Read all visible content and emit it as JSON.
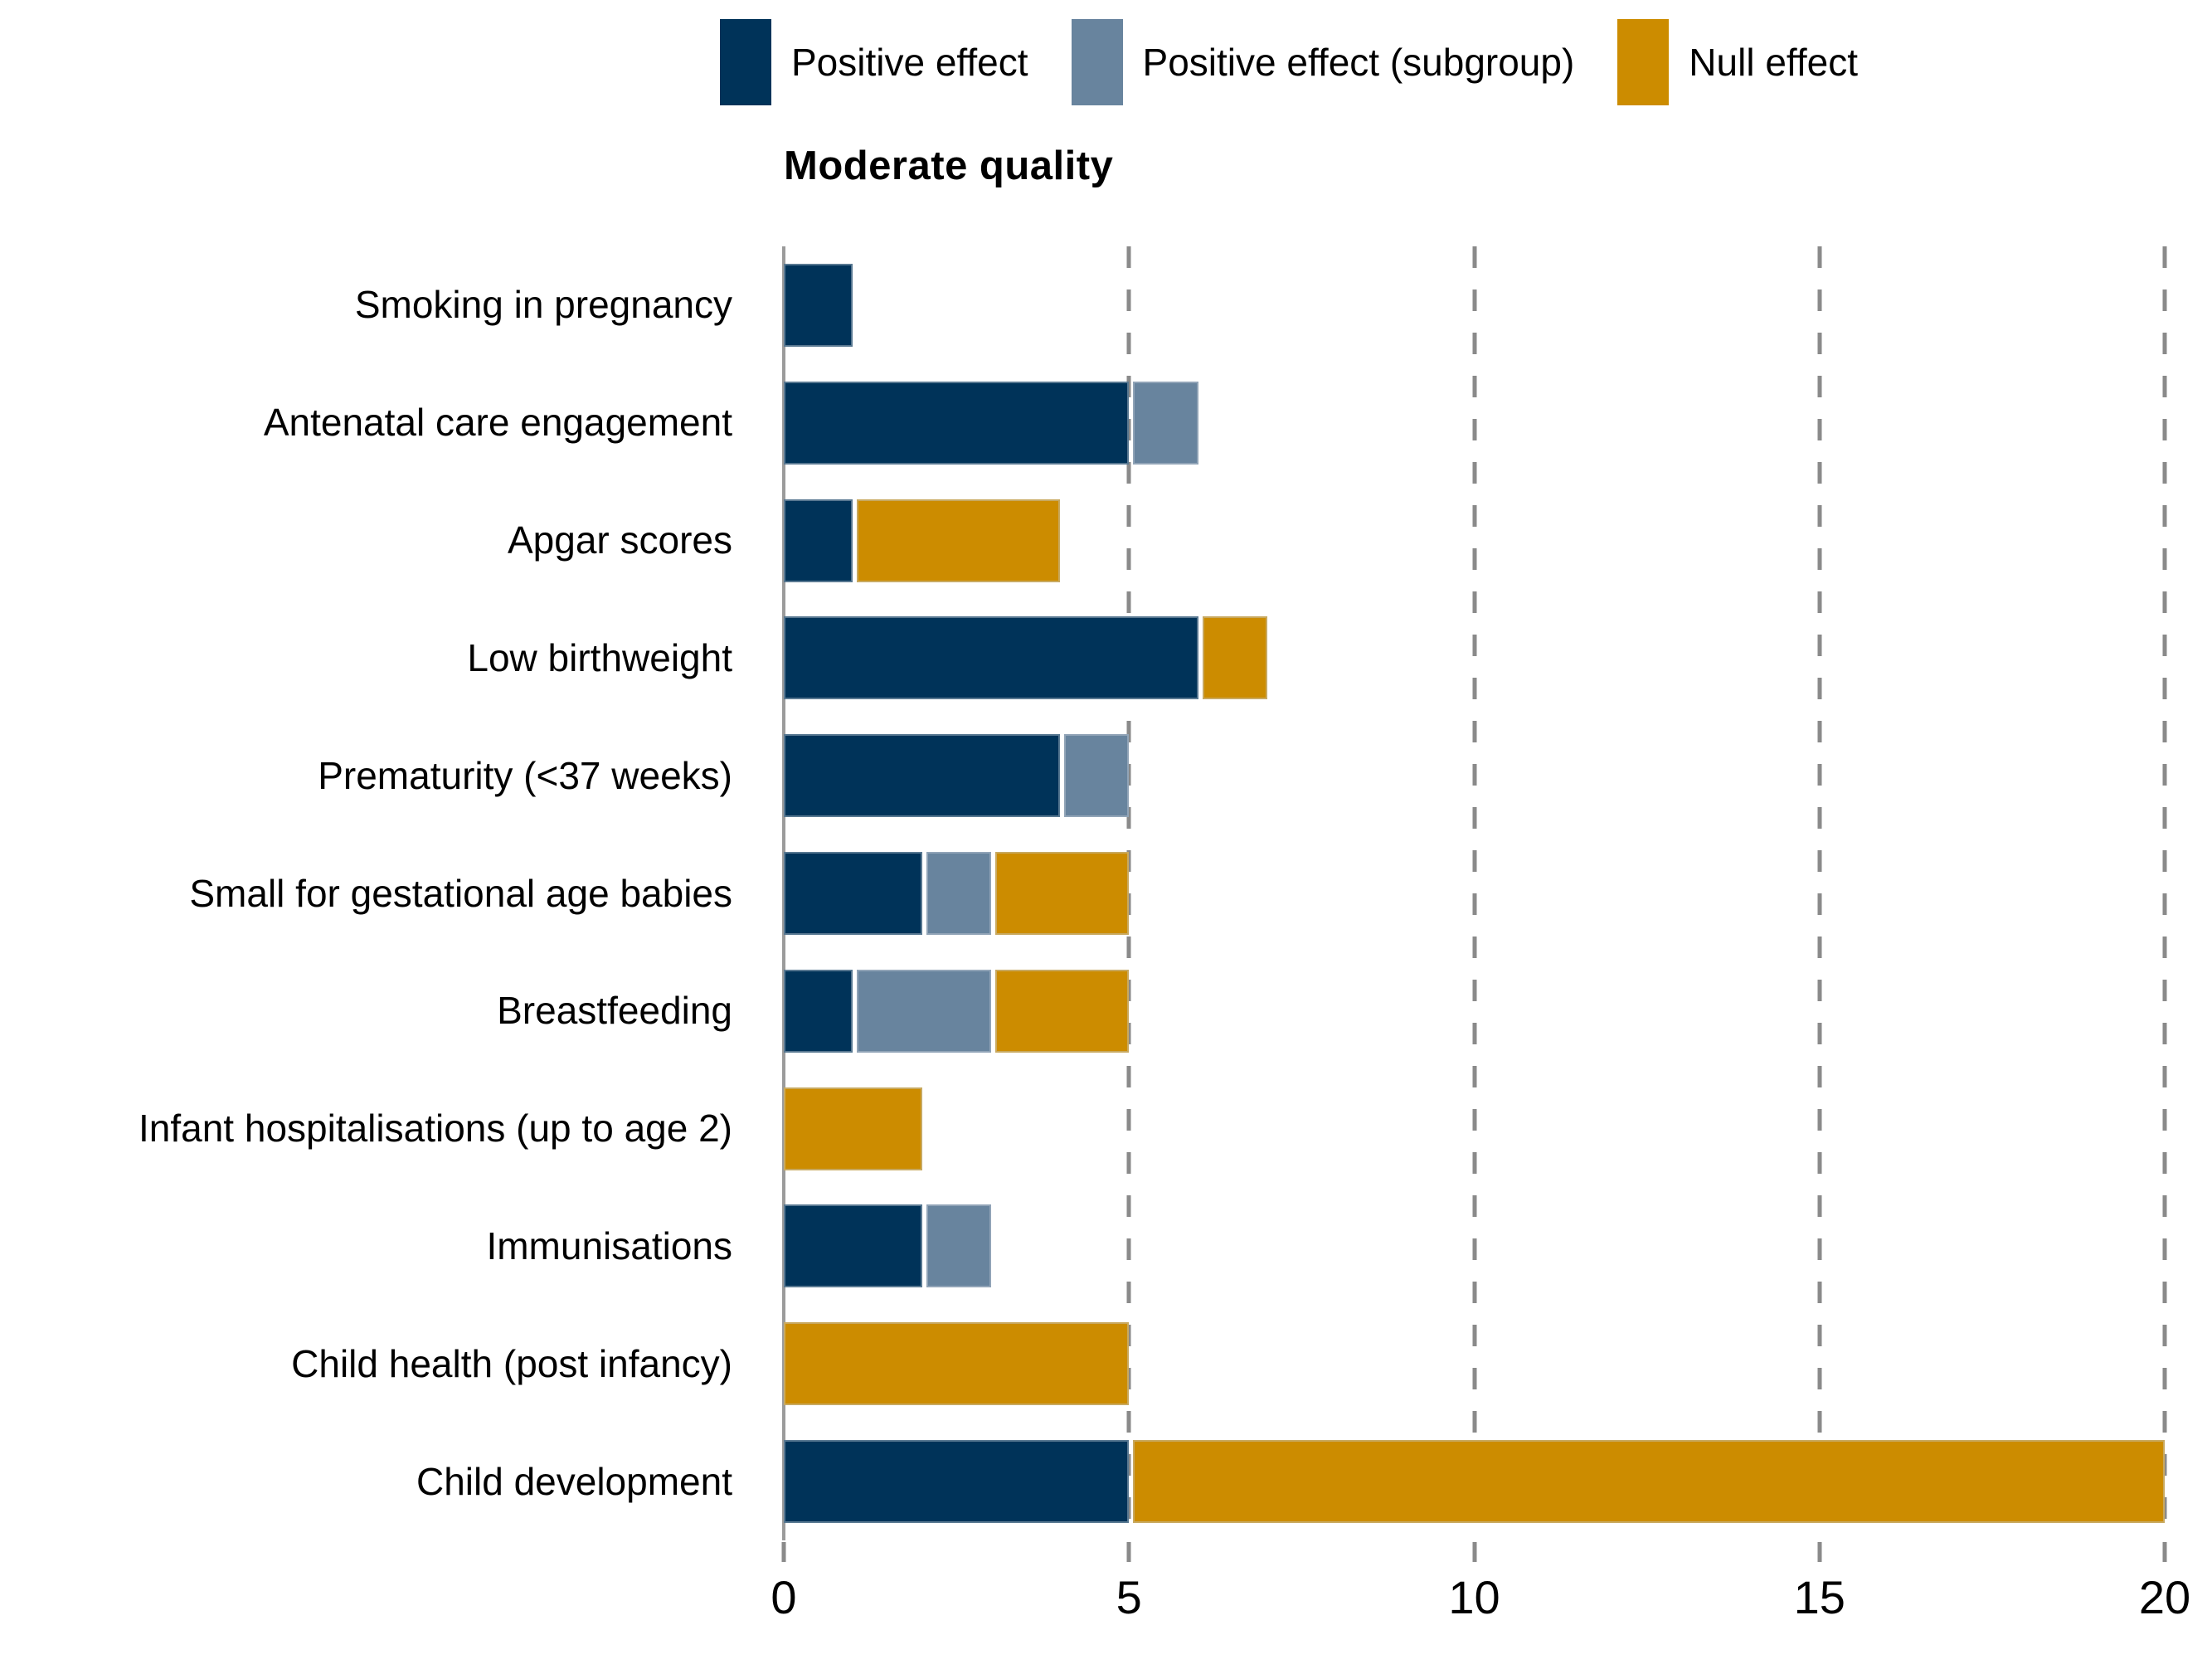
{
  "legend": {
    "items": [
      {
        "label": "Positive effect",
        "color": "#003359"
      },
      {
        "label": "Positive effect (subgroup)",
        "color": "#68849E"
      },
      {
        "label": "Null effect",
        "color": "#CC8C00"
      }
    ]
  },
  "chart_data": {
    "type": "bar",
    "orientation": "horizontal",
    "stacked": true,
    "title": "Moderate quality",
    "categories": [
      "Smoking in pregnancy",
      "Antenatal care engagement",
      "Apgar scores",
      "Low birthweight",
      "Prematurity (<37 weeks)",
      "Small for gestational age babies",
      "Breastfeeding",
      "Infant hospitalisations (up to age 2)",
      "Immunisations",
      "Child health (post infancy)",
      "Child development"
    ],
    "series": [
      {
        "name": "Positive effect",
        "color": "#003359",
        "values": [
          1,
          5,
          1,
          6,
          4,
          2,
          1,
          0,
          2,
          0,
          5
        ]
      },
      {
        "name": "Positive effect (subgroup)",
        "color": "#68849E",
        "values": [
          0,
          1,
          0,
          0,
          1,
          1,
          2,
          0,
          1,
          0,
          0
        ]
      },
      {
        "name": "Null effect",
        "color": "#CC8C00",
        "values": [
          0,
          0,
          3,
          1,
          0,
          2,
          2,
          2,
          0,
          5,
          15
        ]
      }
    ],
    "x_ticks": [
      "0",
      "5",
      "10",
      "15",
      "20"
    ],
    "xlim": [
      0,
      20
    ],
    "grid": {
      "style": "dashed-vertical",
      "at": [
        5,
        10,
        15,
        20
      ],
      "color": "#8A8A8A"
    },
    "axis_line_color": "#9B9B9B",
    "legend_position": "top"
  },
  "colors": {
    "background": "#FFFFFF",
    "text": "#000000"
  }
}
